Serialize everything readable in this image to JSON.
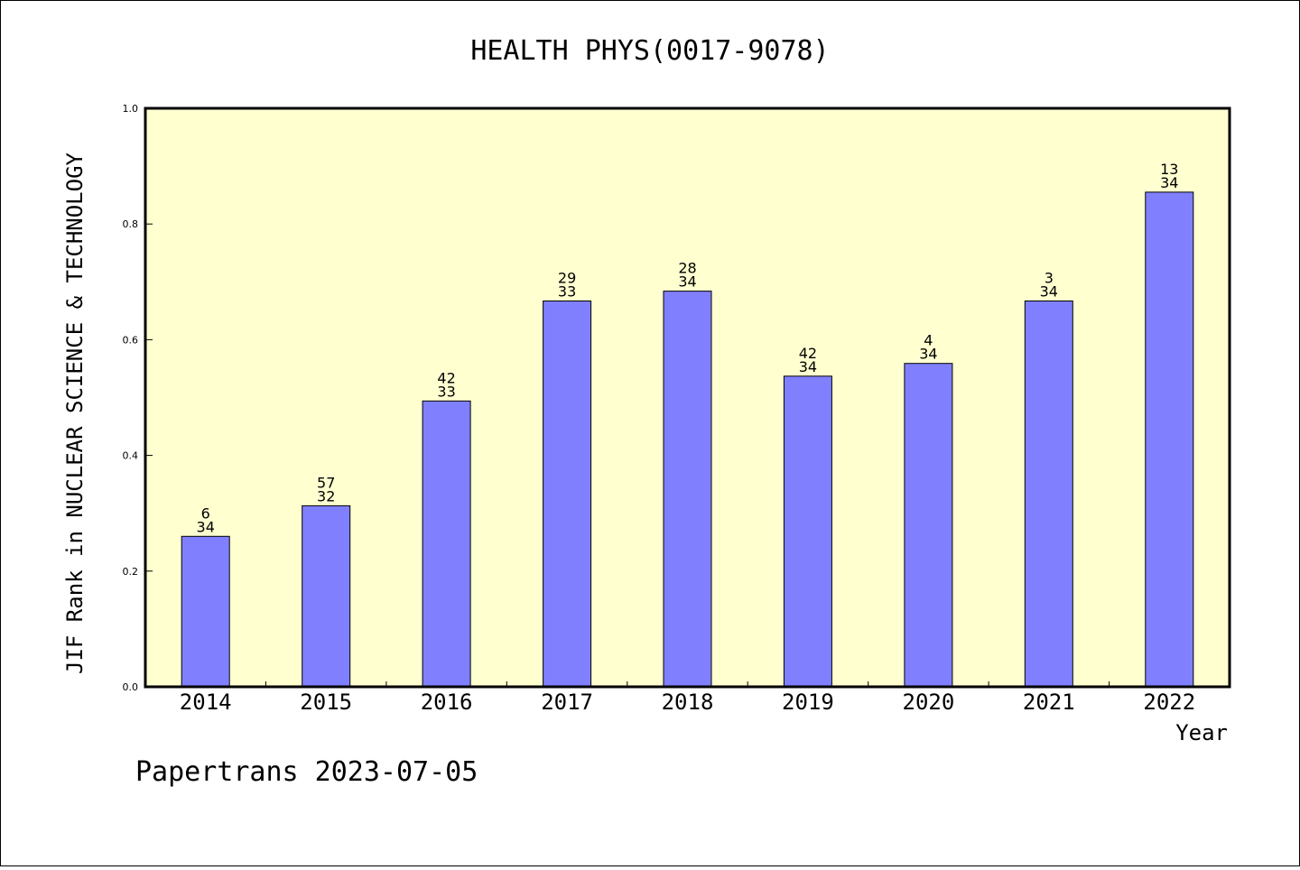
{
  "chart_data": {
    "type": "bar",
    "title": "HEALTH PHYS(0017-9078)",
    "xlabel": "Year",
    "ylabel": "JIF Rank in NUCLEAR SCIENCE & TECHNOLOGY",
    "ylim": [
      0,
      1.0
    ],
    "yticks": [
      "0.0",
      "0.2",
      "0.4",
      "0.6",
      "0.8",
      "1.0"
    ],
    "ytick_values": [
      0,
      0.2,
      0.4,
      0.6,
      0.8,
      1.0
    ],
    "categories": [
      "2014",
      "2015",
      "2016",
      "2017",
      "2018",
      "2019",
      "2020",
      "2021",
      "2022"
    ],
    "values": [
      0.26,
      0.313,
      0.494,
      0.667,
      0.684,
      0.537,
      0.559,
      0.667,
      0.855
    ],
    "rank_labels": [
      {
        "top": "6",
        "bottom": "34"
      },
      {
        "top": "57",
        "bottom": "32"
      },
      {
        "top": "42",
        "bottom": "33"
      },
      {
        "top": "29",
        "bottom": "33"
      },
      {
        "top": "28",
        "bottom": "34"
      },
      {
        "top": "42",
        "bottom": "34"
      },
      {
        "top": "4",
        "bottom": "34"
      },
      {
        "top": "3",
        "bottom": "34"
      },
      {
        "top": "13",
        "bottom": "34"
      }
    ],
    "grid": false,
    "bar_color": "#8080ff",
    "plot_background": "#ffffd0"
  },
  "footer": "Papertrans 2023-07-05"
}
